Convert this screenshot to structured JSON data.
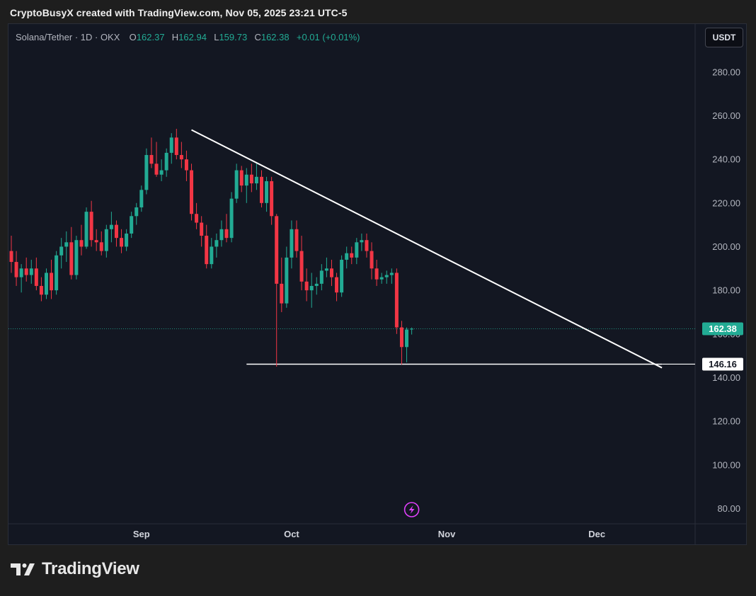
{
  "header": {
    "credit": "CryptoBusyX created with TradingView.com, Nov 05, 2025 23:21 UTC-5"
  },
  "legend": {
    "symbol": "Solana/Tether · 1D · OKX",
    "o_label": "O",
    "o_value": "162.37",
    "h_label": "H",
    "h_value": "162.94",
    "l_label": "L",
    "l_value": "159.73",
    "c_label": "C",
    "c_value": "162.38",
    "change": "+0.01 (+0.01%)"
  },
  "toolbar": {
    "currency": "USDT"
  },
  "footer": {
    "brand": "TradingView"
  },
  "colors": {
    "up": "#22ab94",
    "down": "#f23645",
    "trendline": "#ffffff",
    "last_price_tag": "#22ab94",
    "indicator": "#e040fb"
  },
  "icons": {
    "indicator": "lightning-icon",
    "logo": "tradingview-logo-icon"
  },
  "chart_data": {
    "type": "candlestick",
    "y_ticks": [
      "280.00",
      "260.00",
      "240.00",
      "220.00",
      "200.00",
      "180.00",
      "160.00",
      "140.00",
      "120.00",
      "100.00",
      "80.00"
    ],
    "ylim": [
      73,
      302
    ],
    "x_ticks": [
      {
        "label": "Sep",
        "bar": 26
      },
      {
        "label": "Oct",
        "bar": 56
      },
      {
        "label": "Nov",
        "bar": 87
      },
      {
        "label": "Dec",
        "bar": 117
      }
    ],
    "last_price": {
      "value": 162.38,
      "label": "162.38"
    },
    "support": {
      "value": 146.16,
      "label": "146.16",
      "from_bar": 47,
      "to_bar": 130
    },
    "trendline": {
      "from": {
        "bar": 36,
        "value": 253.5
      },
      "to": {
        "bar": 130,
        "value": 144.5
      }
    },
    "ohlc": [
      [
        198,
        205,
        188,
        193
      ],
      [
        193,
        198,
        182,
        186
      ],
      [
        186,
        192,
        179,
        190
      ],
      [
        190,
        195,
        184,
        187
      ],
      [
        187,
        194,
        183,
        190
      ],
      [
        190,
        195,
        180,
        182
      ],
      [
        182,
        186,
        175,
        178
      ],
      [
        178,
        190,
        176,
        188
      ],
      [
        188,
        194,
        176,
        180
      ],
      [
        180,
        198,
        178,
        196
      ],
      [
        196,
        204,
        190,
        200
      ],
      [
        200,
        207,
        193,
        202
      ],
      [
        202,
        209,
        185,
        187
      ],
      [
        187,
        205,
        185,
        203
      ],
      [
        203,
        210,
        196,
        200
      ],
      [
        200,
        218,
        199,
        216
      ],
      [
        216,
        221,
        200,
        203
      ],
      [
        203,
        208,
        198,
        202
      ],
      [
        202,
        207,
        196,
        198
      ],
      [
        198,
        210,
        195,
        208
      ],
      [
        208,
        216,
        202,
        210
      ],
      [
        210,
        212,
        200,
        204
      ],
      [
        204,
        208,
        197,
        200
      ],
      [
        200,
        208,
        198,
        206
      ],
      [
        206,
        216,
        204,
        214
      ],
      [
        214,
        220,
        210,
        218
      ],
      [
        218,
        228,
        216,
        226
      ],
      [
        226,
        245,
        224,
        242
      ],
      [
        242,
        250,
        236,
        238
      ],
      [
        238,
        248,
        232,
        233
      ],
      [
        233,
        240,
        230,
        235
      ],
      [
        235,
        245,
        232,
        243
      ],
      [
        243,
        252,
        238,
        250
      ],
      [
        250,
        254,
        240,
        242
      ],
      [
        242,
        248,
        236,
        240
      ],
      [
        240,
        244,
        230,
        235
      ],
      [
        235,
        238,
        212,
        215
      ],
      [
        215,
        220,
        208,
        211
      ],
      [
        211,
        214,
        200,
        205
      ],
      [
        205,
        210,
        190,
        192
      ],
      [
        192,
        204,
        190,
        200
      ],
      [
        200,
        206,
        195,
        203
      ],
      [
        203,
        212,
        200,
        208
      ],
      [
        208,
        215,
        202,
        204
      ],
      [
        204,
        225,
        202,
        222
      ],
      [
        222,
        238,
        220,
        235
      ],
      [
        235,
        237,
        225,
        228
      ],
      [
        228,
        236,
        220,
        233
      ],
      [
        233,
        238,
        225,
        229
      ],
      [
        229,
        238,
        226,
        232
      ],
      [
        232,
        235,
        218,
        220
      ],
      [
        220,
        232,
        216,
        230
      ],
      [
        230,
        232,
        210,
        214
      ],
      [
        214,
        215,
        145,
        183
      ],
      [
        183,
        195,
        170,
        174
      ],
      [
        174,
        200,
        172,
        195
      ],
      [
        195,
        212,
        190,
        208
      ],
      [
        208,
        212,
        195,
        198
      ],
      [
        198,
        205,
        180,
        184
      ],
      [
        184,
        190,
        175,
        180
      ],
      [
        180,
        188,
        172,
        182
      ],
      [
        182,
        186,
        178,
        183
      ],
      [
        183,
        192,
        180,
        189
      ],
      [
        189,
        195,
        186,
        190
      ],
      [
        190,
        194,
        182,
        186
      ],
      [
        186,
        188,
        175,
        179
      ],
      [
        179,
        196,
        177,
        194
      ],
      [
        194,
        200,
        190,
        197
      ],
      [
        197,
        200,
        192,
        195
      ],
      [
        195,
        204,
        192,
        202
      ],
      [
        202,
        206,
        198,
        203
      ],
      [
        203,
        206,
        195,
        198
      ],
      [
        198,
        202,
        185,
        190
      ],
      [
        190,
        194,
        182,
        185
      ],
      [
        185,
        188,
        183,
        186
      ],
      [
        186,
        189,
        183,
        187
      ],
      [
        187,
        190,
        183,
        188
      ],
      [
        188,
        190,
        160,
        163
      ],
      [
        163,
        166,
        146,
        154
      ],
      [
        154,
        163,
        147,
        162
      ],
      [
        162.37,
        162.94,
        159.73,
        162.38
      ]
    ]
  }
}
